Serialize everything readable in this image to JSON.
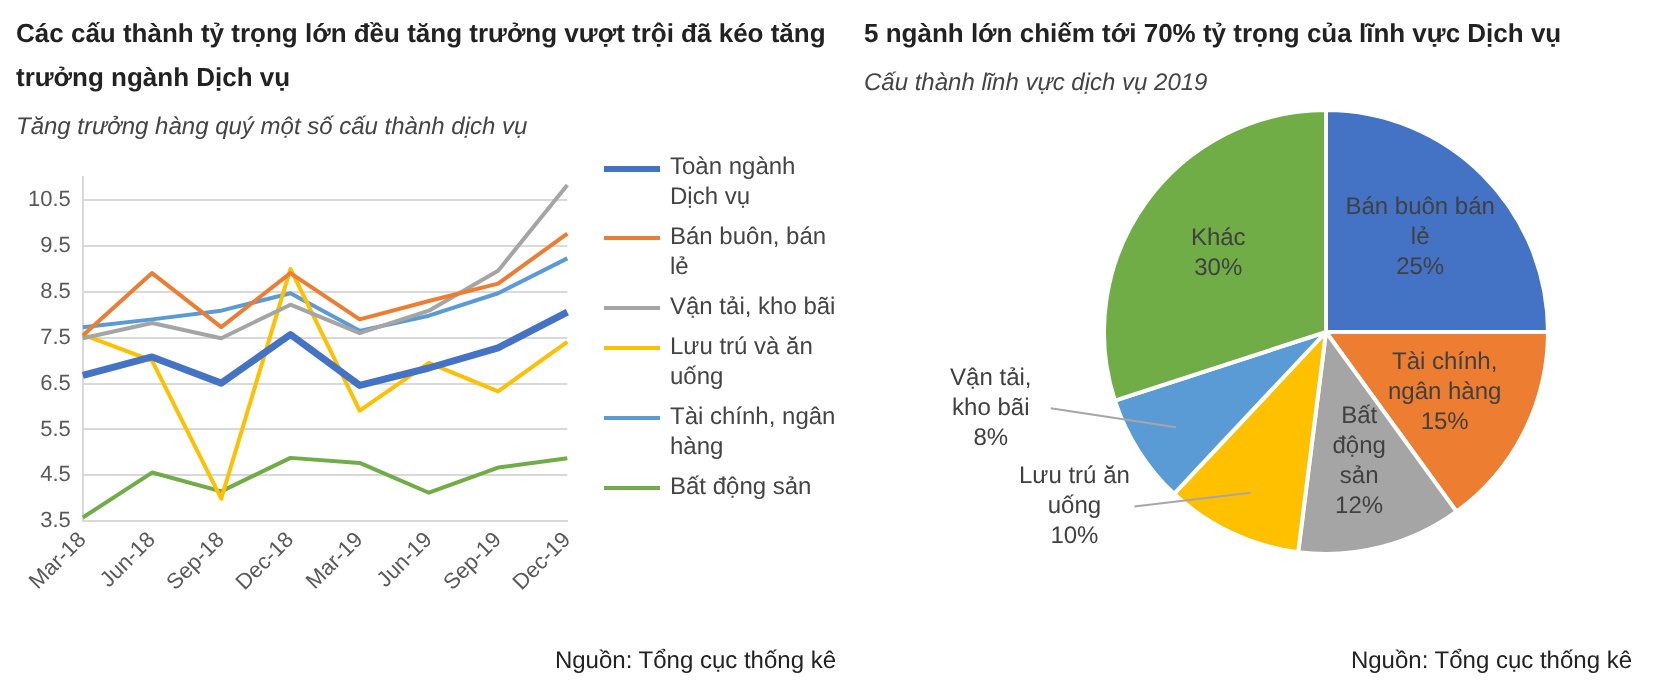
{
  "chart_data": [
    {
      "type": "line",
      "title": "Các cấu thành tỷ trọng lớn đều tăng trưởng vượt trội đã kéo tăng trưởng ngành Dịch vụ",
      "subtitle": "Tăng trưởng hàng quý một số cấu thành dịch vụ",
      "categories": [
        "Mar-18",
        "Jun-18",
        "Sep-18",
        "Dec-18",
        "Mar-19",
        "Jun-19",
        "Sep-19",
        "Dec-19"
      ],
      "series": [
        {
          "name": "Toàn ngành Dịch vụ",
          "color": "#4472c4",
          "values": [
            6.68,
            7.08,
            6.51,
            7.57,
            6.46,
            6.84,
            7.28,
            8.06
          ]
        },
        {
          "name": "Bán buôn, bán lẻ",
          "color": "#ed7d31",
          "values": [
            7.55,
            8.91,
            7.73,
            8.91,
            7.9,
            8.3,
            8.68,
            9.77
          ]
        },
        {
          "name": "Vận tải, kho bãi",
          "color": "#a5a5a5",
          "values": [
            7.49,
            7.82,
            7.49,
            8.22,
            7.6,
            8.09,
            8.96,
            10.83
          ]
        },
        {
          "name": "Lưu trú và ăn uống",
          "color": "#ffc000",
          "values": [
            7.57,
            7.0,
            3.99,
            9.0,
            5.91,
            6.95,
            6.33,
            7.41
          ]
        },
        {
          "name": "Tài chính, ngân hàng",
          "color": "#5b9bd5",
          "values": [
            7.73,
            7.9,
            8.09,
            8.47,
            7.65,
            7.98,
            8.47,
            9.23
          ]
        },
        {
          "name": "Bất động sản",
          "color": "#70ad47",
          "values": [
            3.58,
            4.56,
            4.15,
            4.88,
            4.77,
            4.12,
            4.67,
            4.87
          ]
        }
      ],
      "ylim": [
        3.5,
        11
      ],
      "yticks": [
        3.5,
        4.5,
        5.5,
        6.5,
        7.5,
        8.5,
        9.5,
        10.5
      ],
      "grid": "y",
      "legend": "right",
      "marker": "none",
      "annotations": [
        "Nguồn: Tổng cục thống kê"
      ]
    },
    {
      "type": "pie",
      "title": "5 ngành lớn chiếm tới 70% tỷ trọng của lĩnh vực Dịch vụ",
      "subtitle": "Cấu thành lĩnh vực dịch vụ 2019",
      "categories": [
        "Bán buôn bán lẻ",
        "Tài chính, ngân hàng",
        "Bất động sản",
        "Lưu trú ăn uống",
        "Vận tải, kho bãi",
        "Khác"
      ],
      "values": [
        25,
        15,
        12,
        10,
        8,
        30
      ],
      "colors": [
        "#4472c4",
        "#ed7d31",
        "#a5a5a5",
        "#ffc000",
        "#5b9bd5",
        "#70ad47"
      ],
      "value_labels": [
        "25%",
        "15%",
        "12%",
        "10%",
        "8%",
        "30%"
      ],
      "legend": false,
      "annotations": [
        "Nguồn: Tổng cục thống kê"
      ]
    }
  ]
}
